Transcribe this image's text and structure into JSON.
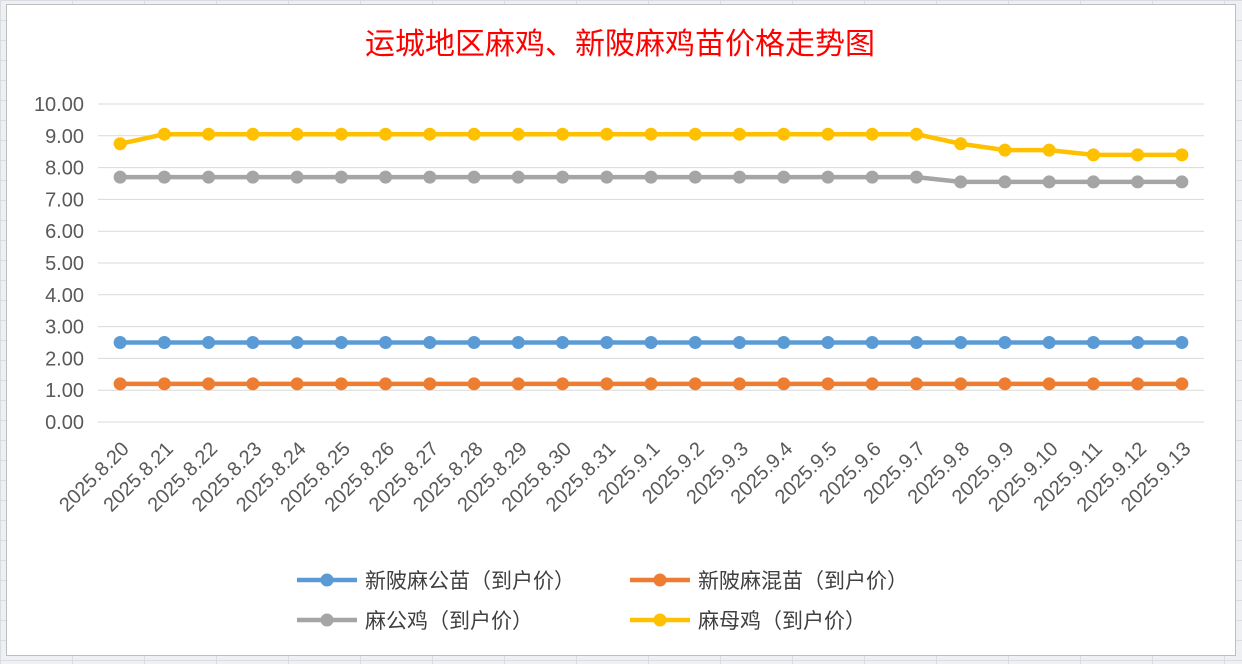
{
  "chart_data": {
    "type": "line",
    "title": "运城地区麻鸡、新陂麻鸡苗价格走势图",
    "xlabel": "",
    "ylabel": "",
    "ylim": [
      0,
      10
    ],
    "y_ticks": [
      "0.00",
      "1.00",
      "2.00",
      "3.00",
      "4.00",
      "5.00",
      "6.00",
      "7.00",
      "8.00",
      "9.00",
      "10.00"
    ],
    "categories": [
      "2025.8.20",
      "2025.8.21",
      "2025.8.22",
      "2025.8.23",
      "2025.8.24",
      "2025.8.25",
      "2025.8.26",
      "2025.8.27",
      "2025.8.28",
      "2025.8.29",
      "2025.8.30",
      "2025.8.31",
      "2025.9.1",
      "2025.9.2",
      "2025.9.3",
      "2025.9.4",
      "2025.9.5",
      "2025.9.6",
      "2025.9.7",
      "2025.9.8",
      "2025.9.9",
      "2025.9.10",
      "2025.9.11",
      "2025.9.12",
      "2025.9.13"
    ],
    "grid": true,
    "legend_position": "bottom",
    "series": [
      {
        "name": "新陂麻公苗（到户价）",
        "color": "#5b9bd5",
        "values": [
          2.5,
          2.5,
          2.5,
          2.5,
          2.5,
          2.5,
          2.5,
          2.5,
          2.5,
          2.5,
          2.5,
          2.5,
          2.5,
          2.5,
          2.5,
          2.5,
          2.5,
          2.5,
          2.5,
          2.5,
          2.5,
          2.5,
          2.5,
          2.5,
          2.5
        ]
      },
      {
        "name": "新陂麻混苗（到户价）",
        "color": "#ed7d31",
        "values": [
          1.2,
          1.2,
          1.2,
          1.2,
          1.2,
          1.2,
          1.2,
          1.2,
          1.2,
          1.2,
          1.2,
          1.2,
          1.2,
          1.2,
          1.2,
          1.2,
          1.2,
          1.2,
          1.2,
          1.2,
          1.2,
          1.2,
          1.2,
          1.2,
          1.2
        ]
      },
      {
        "name": "麻公鸡（到户价）",
        "color": "#a5a5a5",
        "values": [
          7.7,
          7.7,
          7.7,
          7.7,
          7.7,
          7.7,
          7.7,
          7.7,
          7.7,
          7.7,
          7.7,
          7.7,
          7.7,
          7.7,
          7.7,
          7.7,
          7.7,
          7.7,
          7.7,
          7.55,
          7.55,
          7.55,
          7.55,
          7.55,
          7.55
        ]
      },
      {
        "name": "麻母鸡（到户价）",
        "color": "#ffc000",
        "values": [
          8.75,
          9.05,
          9.05,
          9.05,
          9.05,
          9.05,
          9.05,
          9.05,
          9.05,
          9.05,
          9.05,
          9.05,
          9.05,
          9.05,
          9.05,
          9.05,
          9.05,
          9.05,
          9.05,
          8.75,
          8.55,
          8.55,
          8.4,
          8.4,
          8.4
        ]
      }
    ]
  }
}
